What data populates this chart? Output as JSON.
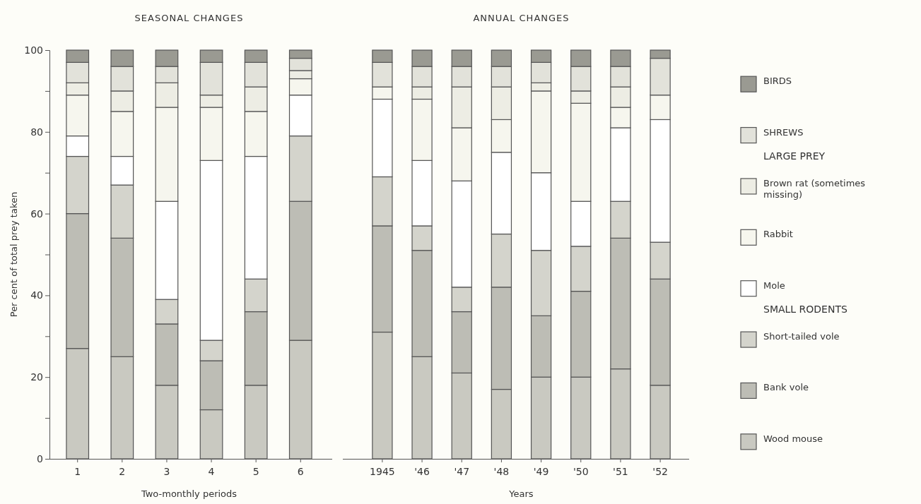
{
  "chart_data": [
    {
      "type": "bar",
      "stacked": true,
      "title": "SEASONAL CHANGES",
      "xlabel": "Two-monthly periods",
      "ylabel": "Per cent of total prey taken",
      "categories": [
        "1",
        "2",
        "3",
        "4",
        "5",
        "6"
      ],
      "ylim": [
        0,
        100
      ],
      "yticks": [
        0,
        {
          "value": 10,
          "label": null
        },
        20,
        {
          "value": 30,
          "label": null
        },
        40,
        {
          "value": 50,
          "label": null
        },
        60,
        {
          "value": 70,
          "label": null
        },
        80,
        {
          "value": 90,
          "label": null
        },
        100
      ],
      "legend": false,
      "series": [
        {
          "color": "#c9c9c1",
          "values": [
            27,
            25,
            18,
            12,
            18,
            29
          ]
        },
        {
          "color": "#bdbdb5",
          "values": [
            33,
            29,
            15,
            12,
            18,
            34
          ]
        },
        {
          "color": "#d4d4cc",
          "values": [
            14,
            13,
            6,
            5,
            8,
            16
          ]
        },
        {
          "color": "#ffffff",
          "values": [
            5,
            7,
            24,
            44,
            30,
            10
          ]
        },
        {
          "color": "#f6f6ee",
          "values": [
            10,
            11,
            23,
            13,
            11,
            4
          ]
        },
        {
          "color": "#ededE4",
          "values": [
            3,
            5,
            6,
            3,
            6,
            2
          ]
        },
        {
          "color": "#e2e2da",
          "values": [
            5,
            6,
            4,
            8,
            6,
            3
          ]
        },
        {
          "color": "#9a9a92",
          "values": [
            3,
            4,
            4,
            3,
            3,
            2
          ]
        }
      ]
    },
    {
      "type": "bar",
      "stacked": true,
      "title": "ANNUAL CHANGES",
      "xlabel": "Years",
      "categories": [
        "1945",
        "'46",
        "'47",
        "'48",
        "'49",
        "'50",
        "'51",
        "'52"
      ],
      "ylim": [
        0,
        100
      ],
      "tick_labels": "x",
      "legend": "right",
      "annotations": [
        "LARGE PREY",
        "SMALL RODENTS"
      ],
      "series": [
        {
          "name": "Wood mouse",
          "color": "#c9c9c1",
          "values": [
            31,
            25,
            21,
            17,
            20,
            20,
            22,
            18
          ]
        },
        {
          "name": "Bank vole",
          "color": "#bdbdb5",
          "values": [
            26,
            26,
            15,
            25,
            15,
            21,
            32,
            26
          ]
        },
        {
          "name": "Short-tailed vole",
          "color": "#d4d4cc",
          "values": [
            12,
            6,
            6,
            13,
            16,
            11,
            9,
            9
          ]
        },
        {
          "name": "Mole",
          "color": "#ffffff",
          "values": [
            19,
            16,
            26,
            20,
            19,
            11,
            18,
            30
          ]
        },
        {
          "name": "Rabbit",
          "color": "#f6f6ee",
          "values": [
            3,
            15,
            13,
            8,
            20,
            24,
            5,
            6
          ]
        },
        {
          "name": "Brown rat (sometimes missing)",
          "color": "#ededE4",
          "values": [
            0,
            3,
            10,
            8,
            2,
            3,
            5,
            0
          ]
        },
        {
          "name": "SHREWS",
          "color": "#e2e2da",
          "values": [
            6,
            5,
            5,
            5,
            5,
            6,
            5,
            9
          ]
        },
        {
          "name": "BIRDS",
          "color": "#9a9a92",
          "values": [
            3,
            4,
            4,
            4,
            3,
            4,
            4,
            2
          ]
        }
      ]
    }
  ]
}
